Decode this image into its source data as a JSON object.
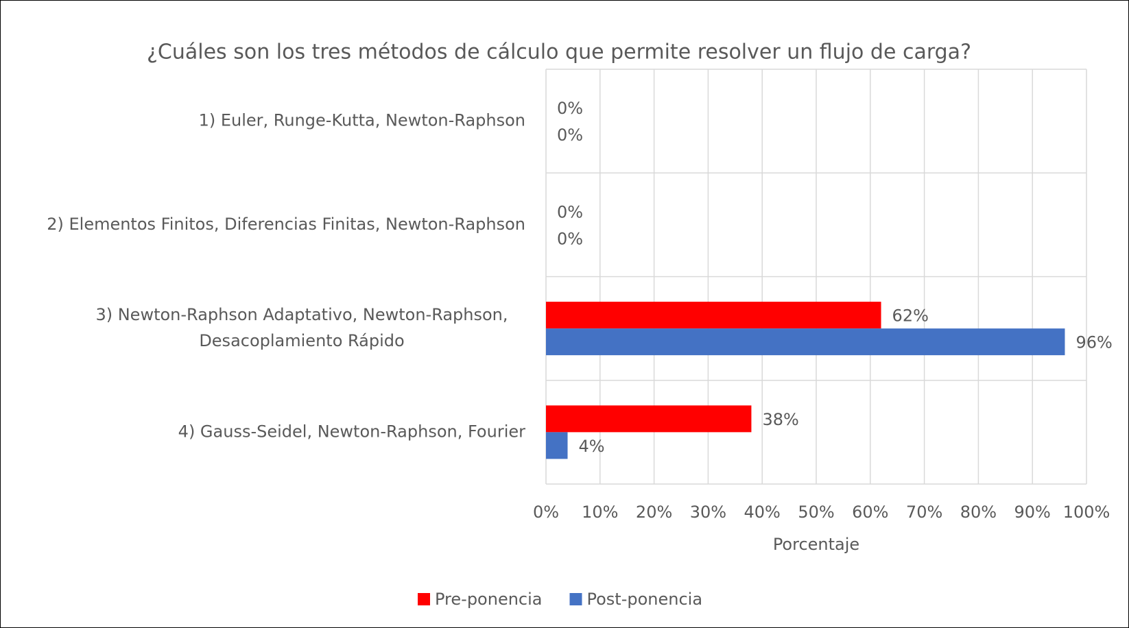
{
  "chart_data": {
    "type": "barh",
    "title": "¿Cuáles son los tres métodos de cálculo que permite resolver un flujo de carga?",
    "xlabel": "Porcentaje",
    "categories": [
      "1) Euler, Runge-Kutta, Newton-Raphson",
      "2) Elementos Finitos, Diferencias Finitas, Newton-Raphson",
      "3) Newton-Raphson Adaptativo, Newton-Raphson, Desacoplamiento Rápido",
      "4) Gauss-Seidel, Newton-Raphson, Fourier"
    ],
    "series": [
      {
        "name": "Pre-ponencia",
        "color": "#ff0000",
        "values": [
          0,
          0,
          62,
          38
        ],
        "value_labels": [
          "0%",
          "0%",
          "62%",
          "38%"
        ]
      },
      {
        "name": "Post-ponencia",
        "color": "#4472c4",
        "values": [
          0,
          0,
          96,
          4
        ],
        "value_labels": [
          "0%",
          "0%",
          "96%",
          "4%"
        ]
      }
    ],
    "xlim": [
      0,
      100
    ],
    "xticks": [
      {
        "value": 0,
        "label": "0%"
      },
      {
        "value": 10,
        "label": "10%"
      },
      {
        "value": 20,
        "label": "20%"
      },
      {
        "value": 30,
        "label": "30%"
      },
      {
        "value": 40,
        "label": "40%"
      },
      {
        "value": 50,
        "label": "50%"
      },
      {
        "value": 60,
        "label": "60%"
      },
      {
        "value": 70,
        "label": "70%"
      },
      {
        "value": 80,
        "label": "80%"
      },
      {
        "value": 90,
        "label": "90%"
      },
      {
        "value": 100,
        "label": "100%"
      }
    ],
    "grid": true,
    "legend": "bottom"
  }
}
